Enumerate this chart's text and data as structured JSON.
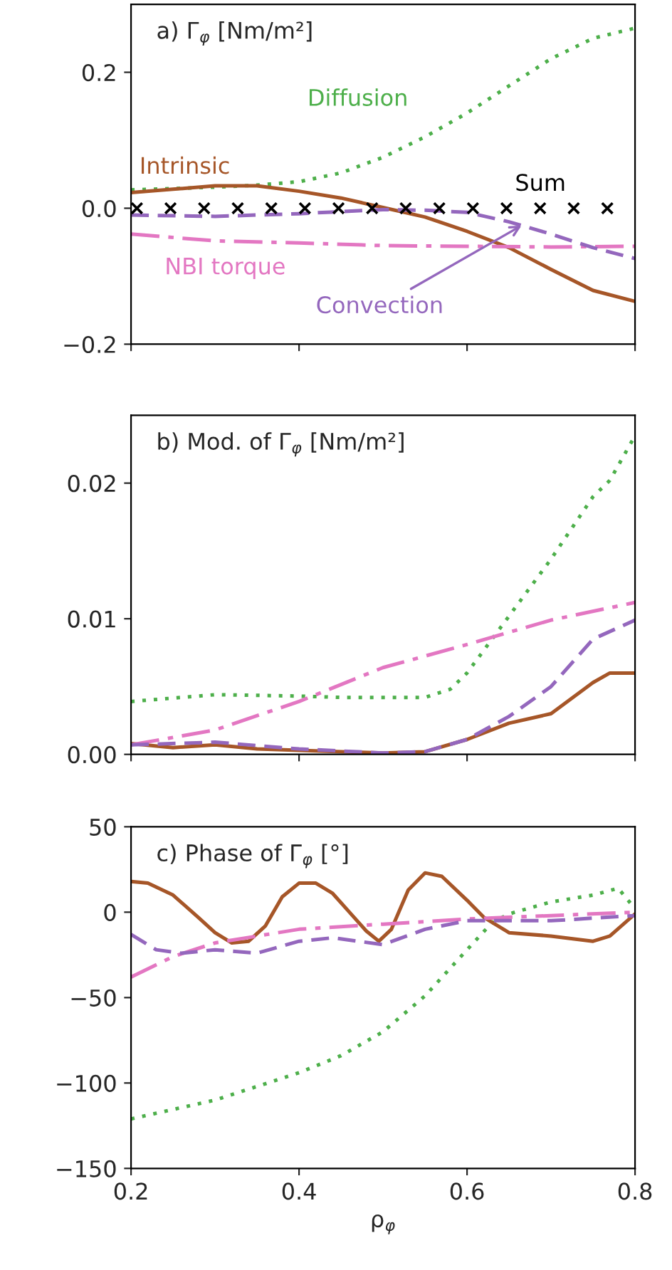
{
  "chart_data": [
    {
      "type": "line",
      "title": "a) Γ$_{φ}$ [Nm/m²]",
      "xlim": [
        0.2,
        0.8
      ],
      "xticks": [
        0.2,
        0.4,
        0.6,
        0.8
      ],
      "ylim": [
        -0.2,
        0.3
      ],
      "yticks": [
        {
          "value": -0.2,
          "label": "−0.2"
        },
        {
          "value": 0.0,
          "label": "0.0"
        },
        {
          "value": 0.2,
          "label": "0.2"
        }
      ],
      "tick_labels": "y",
      "grid": false,
      "legend": false,
      "x": [
        0.2,
        0.25,
        0.3,
        0.35,
        0.4,
        0.45,
        0.5,
        0.55,
        0.6,
        0.65,
        0.7,
        0.75,
        0.8
      ],
      "series": [
        {
          "name": "Diffusion",
          "color": "#4daf4a",
          "line_style": "dotted",
          "values": [
            0.027,
            0.029,
            0.031,
            0.034,
            0.039,
            0.052,
            0.075,
            0.105,
            0.14,
            0.18,
            0.22,
            0.25,
            0.265
          ]
        },
        {
          "name": "Intrinsic",
          "color": "#a65628",
          "line_style": "solid",
          "values": [
            0.023,
            0.028,
            0.033,
            0.033,
            0.025,
            0.015,
            0.001,
            -0.013,
            -0.034,
            -0.058,
            -0.09,
            -0.121,
            -0.137
          ]
        },
        {
          "name": "Sum",
          "type": "scatter",
          "marker": "cross",
          "color": "#000000",
          "x": [
            0.207,
            0.247,
            0.287,
            0.327,
            0.367,
            0.407,
            0.447,
            0.487,
            0.527,
            0.567,
            0.607,
            0.647,
            0.687,
            0.727,
            0.767
          ],
          "values": [
            0,
            0,
            0,
            0,
            0,
            0,
            0,
            0,
            0,
            0,
            0,
            0,
            0,
            0,
            0
          ]
        },
        {
          "name": "NBI torque",
          "color": "#e377c2",
          "line_style": "dashdot",
          "x": [
            0.2,
            0.3,
            0.4,
            0.5,
            0.6,
            0.7,
            0.8
          ],
          "values": [
            -0.038,
            -0.048,
            -0.051,
            -0.055,
            -0.056,
            -0.057,
            -0.056
          ]
        },
        {
          "name": "Convection",
          "color": "#9467bd",
          "line_style": "dashed",
          "x": [
            0.2,
            0.3,
            0.4,
            0.5,
            0.55,
            0.6,
            0.65,
            0.7,
            0.75,
            0.8
          ],
          "values": [
            -0.01,
            -0.012,
            -0.008,
            -0.002,
            -0.003,
            -0.006,
            -0.02,
            -0.038,
            -0.058,
            -0.074
          ]
        }
      ]
    },
    {
      "type": "line",
      "title": "b) Mod. of Γ$_{φ}$ [Nm/m²]",
      "xlim": [
        0.2,
        0.8
      ],
      "xticks": [
        0.2,
        0.4,
        0.6,
        0.8
      ],
      "ylim": [
        0,
        0.025
      ],
      "yticks": [
        {
          "value": 0.0,
          "label": "0.00"
        },
        {
          "value": 0.01,
          "label": "0.01"
        },
        {
          "value": 0.02,
          "label": "0.02"
        }
      ],
      "tick_labels": "y",
      "grid": false,
      "legend": false,
      "series": [
        {
          "color": "#4daf4a",
          "line_style": "dotted",
          "x": [
            0.2,
            0.3,
            0.4,
            0.45,
            0.5,
            0.55,
            0.58,
            0.6,
            0.65,
            0.7,
            0.75,
            0.77,
            0.8
          ],
          "values": [
            0.0039,
            0.0044,
            0.0043,
            0.0042,
            0.0042,
            0.0042,
            0.0048,
            0.006,
            0.0102,
            0.0144,
            0.019,
            0.0202,
            0.0235
          ]
        },
        {
          "color": "#a65628",
          "line_style": "solid",
          "x": [
            0.2,
            0.25,
            0.3,
            0.35,
            0.4,
            0.5,
            0.55,
            0.6,
            0.65,
            0.7,
            0.75,
            0.77,
            0.8
          ],
          "values": [
            0.0008,
            0.0005,
            0.0007,
            0.0004,
            0.0003,
            0.0001,
            0.0002,
            0.0011,
            0.0023,
            0.003,
            0.0053,
            0.006,
            0.006
          ]
        },
        {
          "color": "#e377c2",
          "line_style": "dashdot",
          "x": [
            0.2,
            0.3,
            0.4,
            0.5,
            0.6,
            0.7,
            0.8
          ],
          "values": [
            0.0007,
            0.0018,
            0.0039,
            0.0064,
            0.0081,
            0.0099,
            0.0112
          ]
        },
        {
          "color": "#9467bd",
          "line_style": "dashed",
          "x": [
            0.2,
            0.3,
            0.4,
            0.5,
            0.55,
            0.6,
            0.65,
            0.7,
            0.75,
            0.8
          ],
          "values": [
            0.0007,
            0.0009,
            0.0004,
            0.0001,
            0.0002,
            0.0011,
            0.0028,
            0.005,
            0.0085,
            0.0099
          ]
        }
      ]
    },
    {
      "type": "line",
      "title": "c) Phase of Γ$_{φ}$ [°]",
      "xlabel": "ρ$_{φ}$",
      "xlim": [
        0.2,
        0.8
      ],
      "xticks": [
        0.2,
        0.4,
        0.6,
        0.8
      ],
      "ylim": [
        -150,
        50
      ],
      "yticks": [
        {
          "value": -150,
          "label": "−150"
        },
        {
          "value": -100,
          "label": "−100"
        },
        {
          "value": -50,
          "label": "−50"
        },
        0,
        50
      ],
      "grid": false,
      "legend": false,
      "series": [
        {
          "color": "#4daf4a",
          "line_style": "dotted",
          "x": [
            0.2,
            0.3,
            0.35,
            0.4,
            0.45,
            0.5,
            0.55,
            0.6,
            0.63,
            0.65,
            0.7,
            0.75,
            0.78,
            0.8
          ],
          "values": [
            -121,
            -110,
            -102,
            -94,
            -84,
            -70,
            -49,
            -22,
            -6,
            -1,
            6,
            10,
            14,
            2
          ]
        },
        {
          "color": "#a65628",
          "line_style": "solid",
          "x": [
            0.2,
            0.22,
            0.25,
            0.28,
            0.3,
            0.32,
            0.34,
            0.36,
            0.38,
            0.4,
            0.42,
            0.44,
            0.46,
            0.48,
            0.495,
            0.51,
            0.53,
            0.55,
            0.57,
            0.6,
            0.62,
            0.65,
            0.7,
            0.75,
            0.77,
            0.8
          ],
          "values": [
            18,
            17,
            10,
            -3,
            -12,
            -18,
            -17,
            -8,
            9,
            17,
            17,
            11,
            0,
            -11,
            -17,
            -10,
            13,
            23,
            21,
            7,
            -3,
            -12,
            -14,
            -17,
            -14,
            -1
          ]
        },
        {
          "color": "#e377c2",
          "line_style": "dashdot",
          "x": [
            0.2,
            0.25,
            0.3,
            0.35,
            0.4,
            0.5,
            0.6,
            0.7,
            0.8
          ],
          "values": [
            -38,
            -26,
            -18,
            -14,
            -10,
            -7,
            -4,
            -2,
            0
          ]
        },
        {
          "color": "#9467bd",
          "line_style": "dashed",
          "x": [
            0.2,
            0.23,
            0.26,
            0.3,
            0.35,
            0.4,
            0.44,
            0.5,
            0.55,
            0.6,
            0.7,
            0.8
          ],
          "values": [
            -13,
            -22,
            -24,
            -22,
            -24,
            -17,
            -15,
            -19,
            -10,
            -5,
            -5,
            -2
          ]
        }
      ]
    }
  ]
}
